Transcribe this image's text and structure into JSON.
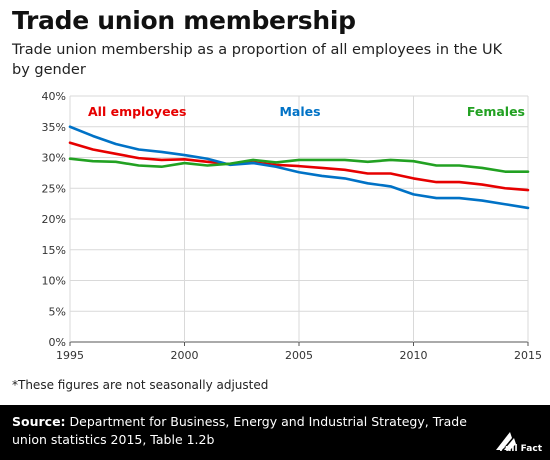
{
  "header": {
    "title": "Trade union membership",
    "subtitle_line1": "Trade union membership as a proportion of all employees in the UK",
    "subtitle_line2": "by gender"
  },
  "note": "*These figures are not seasonally adjusted",
  "footer": {
    "source_label": "Source:",
    "source_text": "Department for Business, Energy and Industrial Strategy, Trade union statistics 2015, Table 1.2b",
    "logo_text": "Full Fact"
  },
  "chart_data": {
    "type": "line",
    "x": [
      1995,
      1996,
      1997,
      1998,
      1999,
      2000,
      2001,
      2002,
      2003,
      2004,
      2005,
      2006,
      2007,
      2008,
      2009,
      2010,
      2011,
      2012,
      2013,
      2014,
      2015
    ],
    "xticks": [
      "1995",
      "2000",
      "2005",
      "2010",
      "2015"
    ],
    "xtick_values": [
      1995,
      2000,
      2005,
      2010,
      2015
    ],
    "yticks": [
      "0%",
      "5%",
      "10%",
      "15%",
      "20%",
      "25%",
      "30%",
      "35%",
      "40%"
    ],
    "ylim": [
      0,
      40
    ],
    "xlim": [
      1995,
      2015
    ],
    "grid": true,
    "series": [
      {
        "name": "All employees",
        "color": "#e60000",
        "values": [
          32.4,
          31.3,
          30.6,
          29.9,
          29.6,
          29.7,
          29.3,
          28.9,
          29.2,
          28.8,
          28.6,
          28.3,
          28.0,
          27.4,
          27.4,
          26.6,
          26.0,
          26.0,
          25.6,
          25.0,
          24.7
        ]
      },
      {
        "name": "Males",
        "color": "#0072c6",
        "values": [
          35.0,
          33.5,
          32.2,
          31.3,
          30.9,
          30.4,
          29.8,
          28.8,
          29.1,
          28.5,
          27.6,
          27.0,
          26.6,
          25.8,
          25.3,
          24.0,
          23.4,
          23.4,
          23.0,
          22.4,
          21.8
        ]
      },
      {
        "name": "Females",
        "color": "#22a122",
        "values": [
          29.8,
          29.4,
          29.3,
          28.7,
          28.5,
          29.1,
          28.7,
          29.0,
          29.6,
          29.2,
          29.6,
          29.6,
          29.6,
          29.3,
          29.6,
          29.4,
          28.7,
          28.7,
          28.3,
          27.7,
          27.7
        ]
      }
    ]
  }
}
